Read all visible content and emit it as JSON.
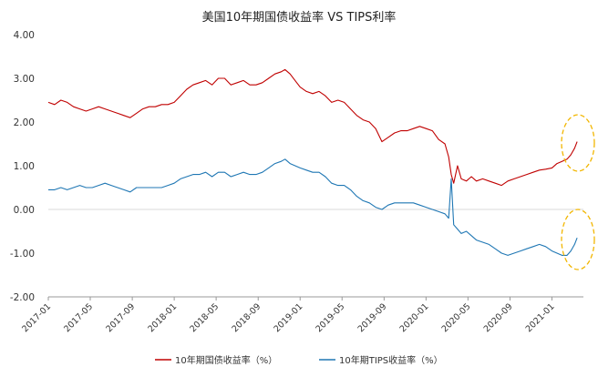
{
  "chart_data": {
    "type": "line",
    "title": "美国10年期国债收益率 VS TIPS利率",
    "xlabel": "",
    "ylabel": "",
    "ylim": [
      -2.0,
      4.0
    ],
    "y_ticks": [
      "4.00",
      "3.00",
      "2.00",
      "1.00",
      "0.00",
      "-1.00",
      "-2.00"
    ],
    "y_tick_values": [
      4,
      3,
      2,
      1,
      0,
      -1,
      -2
    ],
    "x_ticks": [
      "2017-01",
      "2017-05",
      "2017-09",
      "2018-01",
      "2018-05",
      "2018-09",
      "2019-01",
      "2019-05",
      "2019-09",
      "2020-01",
      "2020-05",
      "2020-09",
      "2021-01"
    ],
    "x_tick_values": [
      2017.0,
      2017.333,
      2017.667,
      2018.0,
      2018.333,
      2018.667,
      2019.0,
      2019.333,
      2019.667,
      2020.0,
      2020.333,
      2020.667,
      2021.0
    ],
    "xlim": [
      2017.0,
      2021.25
    ],
    "grid": false,
    "legend_position": "bottom",
    "series": [
      {
        "name": "10年期国债收益率（%）",
        "color": "#c00000",
        "x": [
          2017.0,
          2017.05,
          2017.1,
          2017.15,
          2017.2,
          2017.25,
          2017.3,
          2017.35,
          2017.4,
          2017.45,
          2017.5,
          2017.55,
          2017.6,
          2017.65,
          2017.7,
          2017.75,
          2017.8,
          2017.85,
          2017.9,
          2017.95,
          2018.0,
          2018.05,
          2018.1,
          2018.15,
          2018.2,
          2018.25,
          2018.3,
          2018.35,
          2018.4,
          2018.45,
          2018.5,
          2018.55,
          2018.6,
          2018.65,
          2018.7,
          2018.75,
          2018.8,
          2018.85,
          2018.88,
          2018.92,
          2018.96,
          2019.0,
          2019.05,
          2019.1,
          2019.15,
          2019.2,
          2019.25,
          2019.3,
          2019.35,
          2019.4,
          2019.45,
          2019.5,
          2019.55,
          2019.6,
          2019.65,
          2019.7,
          2019.75,
          2019.8,
          2019.85,
          2019.9,
          2019.95,
          2020.0,
          2020.05,
          2020.1,
          2020.15,
          2020.18,
          2020.2,
          2020.22,
          2020.25,
          2020.28,
          2020.32,
          2020.36,
          2020.4,
          2020.45,
          2020.5,
          2020.55,
          2020.6,
          2020.65,
          2020.7,
          2020.75,
          2020.8,
          2020.85,
          2020.9,
          2020.95,
          2021.0,
          2021.04,
          2021.08,
          2021.12,
          2021.15,
          2021.18,
          2021.2
        ],
        "y": [
          2.45,
          2.4,
          2.5,
          2.45,
          2.35,
          2.3,
          2.25,
          2.3,
          2.35,
          2.3,
          2.25,
          2.2,
          2.15,
          2.1,
          2.2,
          2.3,
          2.35,
          2.35,
          2.4,
          2.4,
          2.45,
          2.6,
          2.75,
          2.85,
          2.9,
          2.95,
          2.85,
          3.0,
          3.0,
          2.85,
          2.9,
          2.95,
          2.85,
          2.85,
          2.9,
          3.0,
          3.1,
          3.15,
          3.2,
          3.1,
          2.95,
          2.8,
          2.7,
          2.65,
          2.7,
          2.6,
          2.45,
          2.5,
          2.45,
          2.3,
          2.15,
          2.05,
          2.0,
          1.85,
          1.55,
          1.65,
          1.75,
          1.8,
          1.8,
          1.85,
          1.9,
          1.85,
          1.8,
          1.6,
          1.5,
          1.2,
          0.8,
          0.6,
          1.0,
          0.7,
          0.65,
          0.75,
          0.65,
          0.7,
          0.65,
          0.6,
          0.55,
          0.65,
          0.7,
          0.75,
          0.8,
          0.85,
          0.9,
          0.92,
          0.95,
          1.05,
          1.1,
          1.15,
          1.25,
          1.4,
          1.55
        ]
      },
      {
        "name": "10年期TIPS收益率（%）",
        "color": "#1f77b4",
        "x": [
          2017.0,
          2017.05,
          2017.1,
          2017.15,
          2017.2,
          2017.25,
          2017.3,
          2017.35,
          2017.4,
          2017.45,
          2017.5,
          2017.55,
          2017.6,
          2017.65,
          2017.7,
          2017.75,
          2017.8,
          2017.85,
          2017.9,
          2017.95,
          2018.0,
          2018.05,
          2018.1,
          2018.15,
          2018.2,
          2018.25,
          2018.3,
          2018.35,
          2018.4,
          2018.45,
          2018.5,
          2018.55,
          2018.6,
          2018.65,
          2018.7,
          2018.75,
          2018.8,
          2018.85,
          2018.88,
          2018.92,
          2018.96,
          2019.0,
          2019.05,
          2019.1,
          2019.15,
          2019.2,
          2019.25,
          2019.3,
          2019.35,
          2019.4,
          2019.45,
          2019.5,
          2019.55,
          2019.6,
          2019.65,
          2019.7,
          2019.75,
          2019.8,
          2019.85,
          2019.9,
          2019.95,
          2020.0,
          2020.05,
          2020.1,
          2020.15,
          2020.18,
          2020.2,
          2020.22,
          2020.25,
          2020.28,
          2020.32,
          2020.36,
          2020.4,
          2020.45,
          2020.5,
          2020.55,
          2020.6,
          2020.65,
          2020.7,
          2020.75,
          2020.8,
          2020.85,
          2020.9,
          2020.95,
          2021.0,
          2021.04,
          2021.08,
          2021.12,
          2021.15,
          2021.18,
          2021.2
        ],
        "y": [
          0.45,
          0.45,
          0.5,
          0.45,
          0.5,
          0.55,
          0.5,
          0.5,
          0.55,
          0.6,
          0.55,
          0.5,
          0.45,
          0.4,
          0.5,
          0.5,
          0.5,
          0.5,
          0.5,
          0.55,
          0.6,
          0.7,
          0.75,
          0.8,
          0.8,
          0.85,
          0.75,
          0.85,
          0.85,
          0.75,
          0.8,
          0.85,
          0.8,
          0.8,
          0.85,
          0.95,
          1.05,
          1.1,
          1.15,
          1.05,
          1.0,
          0.95,
          0.9,
          0.85,
          0.85,
          0.75,
          0.6,
          0.55,
          0.55,
          0.45,
          0.3,
          0.2,
          0.15,
          0.05,
          0.0,
          0.1,
          0.15,
          0.15,
          0.15,
          0.15,
          0.1,
          0.05,
          0.0,
          -0.05,
          -0.1,
          -0.2,
          0.7,
          -0.35,
          -0.45,
          -0.55,
          -0.5,
          -0.6,
          -0.7,
          -0.75,
          -0.8,
          -0.9,
          -1.0,
          -1.05,
          -1.0,
          -0.95,
          -0.9,
          -0.85,
          -0.8,
          -0.85,
          -0.95,
          -1.0,
          -1.05,
          -1.05,
          -0.95,
          -0.8,
          -0.65
        ]
      }
    ]
  }
}
